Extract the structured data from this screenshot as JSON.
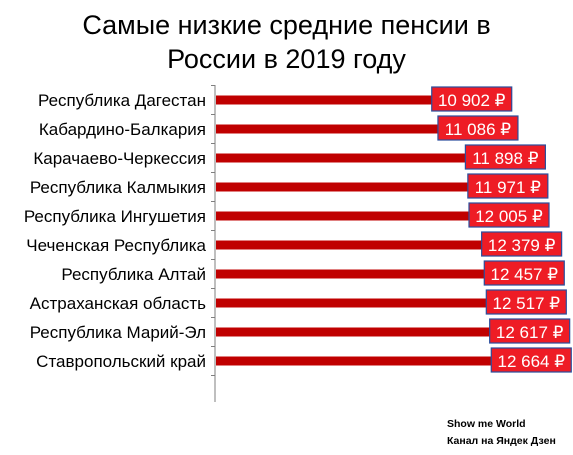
{
  "chart_data": {
    "type": "bar",
    "orientation": "horizontal",
    "title_lines": [
      "Самые низкие средние пенсии в",
      "России в 2019 году"
    ],
    "categories": [
      "Республика Дагестан",
      "Кабардино-Балкария",
      "Карачаево-Черкессия",
      "Республика Калмыкия",
      "Республика Ингушетия",
      "Чеченская Республика",
      "Республика Алтай",
      "Астраханская область",
      "Республика Марий-Эл",
      "Ставропольский край"
    ],
    "values": [
      10902,
      11086,
      11898,
      11971,
      12005,
      12379,
      12457,
      12517,
      12617,
      12664
    ],
    "value_labels": [
      "10 902 ₽",
      "11 086 ₽",
      "11 898 ₽",
      "11 971 ₽",
      "12 005 ₽",
      "12 379 ₽",
      "12 457 ₽",
      "12 517 ₽",
      "12 617 ₽",
      "12 664 ₽"
    ],
    "xlim": [
      6500,
      13100
    ],
    "grid": false,
    "colors": {
      "bar": "#c00000",
      "label_box": "#ee1c25",
      "label_border": "#2a4d9c",
      "axis": "#7f7f7f"
    }
  },
  "credit": {
    "line1": "Show me World",
    "line2": "Канал на Яндек Дзен"
  }
}
